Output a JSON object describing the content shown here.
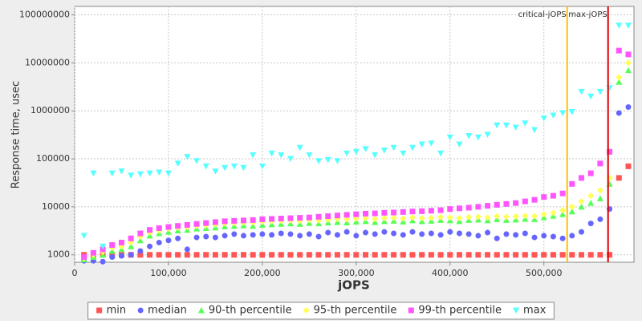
{
  "chart_data": {
    "type": "scatter",
    "x_label": "jOPS",
    "y_label": "Response time, usec",
    "log_y": true,
    "grid": true,
    "xlim": [
      0,
      596000
    ],
    "xticks": [
      0,
      {
        "value": 100000,
        "label": "100,000"
      },
      {
        "value": 200000,
        "label": "200,000"
      },
      {
        "value": 300000,
        "label": "300,000"
      },
      {
        "value": 400000,
        "label": "400,000"
      },
      {
        "value": 500000,
        "label": "500,000"
      }
    ],
    "ylim": [
      700,
      150000000
    ],
    "yticks": [
      1000,
      10000,
      100000,
      1000000,
      10000000,
      100000000
    ],
    "vlines": [
      {
        "label": "critical-jOPS",
        "value": 524800,
        "color": "#ffc000"
      },
      {
        "label": "max-jOPS",
        "value": 568400,
        "color": "#e00000"
      }
    ],
    "x": [
      10000,
      20000,
      30000,
      40000,
      50000,
      60000,
      70000,
      80000,
      90000,
      100000,
      110000,
      120000,
      130000,
      140000,
      150000,
      160000,
      170000,
      180000,
      190000,
      200000,
      210000,
      220000,
      230000,
      240000,
      250000,
      260000,
      270000,
      280000,
      290000,
      300000,
      310000,
      320000,
      330000,
      340000,
      350000,
      360000,
      370000,
      380000,
      390000,
      400000,
      410000,
      420000,
      430000,
      440000,
      450000,
      460000,
      470000,
      480000,
      490000,
      500000,
      510000,
      520000,
      530000,
      540000,
      550000,
      560000,
      570000,
      580000,
      590000
    ],
    "series": [
      {
        "name": "min",
        "shape": "square",
        "color": "#ff5555",
        "values": [
          1000,
          1000,
          1000,
          1000,
          1000,
          1000,
          1000,
          1000,
          1000,
          1000,
          1000,
          1000,
          1000,
          1000,
          1000,
          1000,
          1000,
          1000,
          1000,
          1000,
          1000,
          1000,
          1000,
          1000,
          1000,
          1000,
          1000,
          1000,
          1000,
          1000,
          1000,
          1000,
          1000,
          1000,
          1000,
          1000,
          1000,
          1000,
          1000,
          1000,
          1000,
          1000,
          1000,
          1000,
          1000,
          1000,
          1000,
          1000,
          1000,
          1000,
          1000,
          1000,
          1000,
          1000,
          1000,
          1000,
          1000,
          40000,
          70000
        ]
      },
      {
        "name": "median",
        "shape": "circle",
        "color": "#6666ff",
        "values": [
          750,
          750,
          720,
          900,
          950,
          1000,
          1200,
          1500,
          1800,
          2000,
          2200,
          1300,
          2300,
          2400,
          2300,
          2500,
          2700,
          2500,
          2600,
          2700,
          2600,
          2800,
          2700,
          2500,
          2700,
          2400,
          2900,
          2600,
          3000,
          2500,
          2900,
          2700,
          3000,
          2800,
          2600,
          3000,
          2700,
          2800,
          2600,
          3000,
          2800,
          2700,
          2500,
          2900,
          2200,
          2700,
          2600,
          2800,
          2300,
          2500,
          2400,
          2200,
          2500,
          3000,
          4500,
          5500,
          9000,
          900000,
          1200000
        ]
      },
      {
        "name": "90-th percentile",
        "shape": "triangle-up",
        "color": "#55ff55",
        "values": [
          800,
          900,
          1000,
          1200,
          1300,
          1500,
          2000,
          2500,
          2800,
          3000,
          3200,
          3300,
          3500,
          3600,
          3700,
          3900,
          4000,
          4100,
          4000,
          4200,
          4300,
          4400,
          4500,
          4400,
          4600,
          4500,
          4700,
          4800,
          4700,
          4900,
          5000,
          4800,
          5000,
          5100,
          4900,
          5200,
          5000,
          5100,
          5300,
          5200,
          5000,
          5300,
          5400,
          5200,
          5500,
          5300,
          5400,
          5600,
          5500,
          6000,
          6500,
          7000,
          8000,
          10000,
          12000,
          15000,
          30000,
          4000000,
          7000000
        ]
      },
      {
        "name": "95-th percentile",
        "shape": "diamond",
        "color": "#ffff55",
        "values": [
          850,
          1000,
          1150,
          1400,
          1500,
          1800,
          2400,
          2900,
          3200,
          3500,
          3700,
          3800,
          4000,
          4100,
          4300,
          4500,
          4600,
          4700,
          4700,
          4900,
          5000,
          5100,
          5200,
          5100,
          5300,
          5200,
          5400,
          5600,
          5500,
          5700,
          5800,
          5600,
          5800,
          5900,
          5700,
          6000,
          5800,
          5900,
          6100,
          6000,
          5800,
          6100,
          6200,
          6000,
          6400,
          6200,
          6300,
          6500,
          6400,
          7000,
          7500,
          8500,
          10000,
          13000,
          17000,
          22000,
          40000,
          5000000,
          10000000
        ]
      },
      {
        "name": "99-th percentile",
        "shape": "square",
        "color": "#ff55ff",
        "values": [
          900,
          1100,
          1300,
          1600,
          1800,
          2200,
          2800,
          3300,
          3600,
          3800,
          4000,
          4200,
          4400,
          4600,
          4800,
          5000,
          5100,
          5200,
          5300,
          5500,
          5600,
          5700,
          5800,
          5900,
          6000,
          6200,
          6400,
          6600,
          6800,
          7000,
          7200,
          7300,
          7500,
          7600,
          7800,
          8000,
          8100,
          8300,
          8500,
          9000,
          9300,
          9600,
          10000,
          10500,
          11000,
          11500,
          12000,
          13000,
          14000,
          16000,
          17000,
          19000,
          30000,
          40000,
          50000,
          80000,
          140000,
          18000000,
          15000000
        ]
      },
      {
        "name": "max",
        "shape": "triangle-down",
        "color": "#55ffff",
        "values": [
          2500,
          50000,
          1500,
          50000,
          55000,
          45000,
          48000,
          50000,
          52000,
          50000,
          80000,
          110000,
          90000,
          70000,
          55000,
          65000,
          70000,
          65000,
          120000,
          70000,
          130000,
          120000,
          100000,
          170000,
          120000,
          90000,
          95000,
          90000,
          130000,
          140000,
          160000,
          120000,
          150000,
          170000,
          130000,
          170000,
          200000,
          210000,
          130000,
          280000,
          200000,
          300000,
          280000,
          320000,
          500000,
          500000,
          450000,
          550000,
          400000,
          700000,
          800000,
          900000,
          950000,
          2500000,
          2000000,
          2500000,
          3000000,
          60000000,
          60000000
        ]
      }
    ]
  }
}
